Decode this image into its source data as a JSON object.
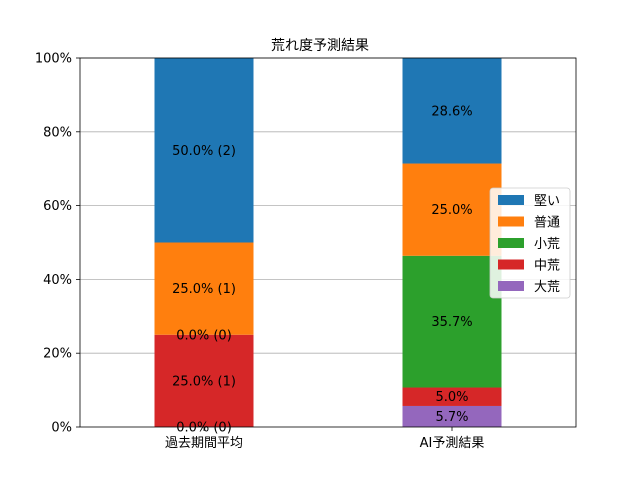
{
  "chart_data": {
    "type": "bar",
    "stacked": true,
    "percent_axis": true,
    "title": "荒れ度予測結果",
    "xlabel": "",
    "ylabel": "",
    "ylim": [
      0,
      100
    ],
    "yticks": [
      "0%",
      "20%",
      "40%",
      "60%",
      "80%",
      "100%"
    ],
    "ytick_values": [
      0,
      20,
      40,
      60,
      80,
      100
    ],
    "grid": "y",
    "legend_position": "right",
    "categories": [
      "過去期間平均",
      "AI予測結果"
    ],
    "series": [
      {
        "name": "大荒",
        "color": "#9467bd",
        "values": [
          0.0,
          5.7
        ],
        "labels": [
          "0.0% (0)",
          "5.7%"
        ]
      },
      {
        "name": "中荒",
        "color": "#d62728",
        "values": [
          25.0,
          5.0
        ],
        "labels": [
          "25.0% (1)",
          "5.0%"
        ]
      },
      {
        "name": "小荒",
        "color": "#2ca02c",
        "values": [
          0.0,
          35.7
        ],
        "labels": [
          "0.0% (0)",
          "35.7%"
        ]
      },
      {
        "name": "普通",
        "color": "#ff7f0e",
        "values": [
          25.0,
          25.0
        ],
        "labels": [
          "25.0% (1)",
          "25.0%"
        ]
      },
      {
        "name": "堅い",
        "color": "#1f77b4",
        "values": [
          50.0,
          28.6
        ],
        "labels": [
          "50.0% (2)",
          "28.6%"
        ]
      }
    ],
    "legend_order": [
      "堅い",
      "普通",
      "小荒",
      "中荒",
      "大荒"
    ]
  }
}
